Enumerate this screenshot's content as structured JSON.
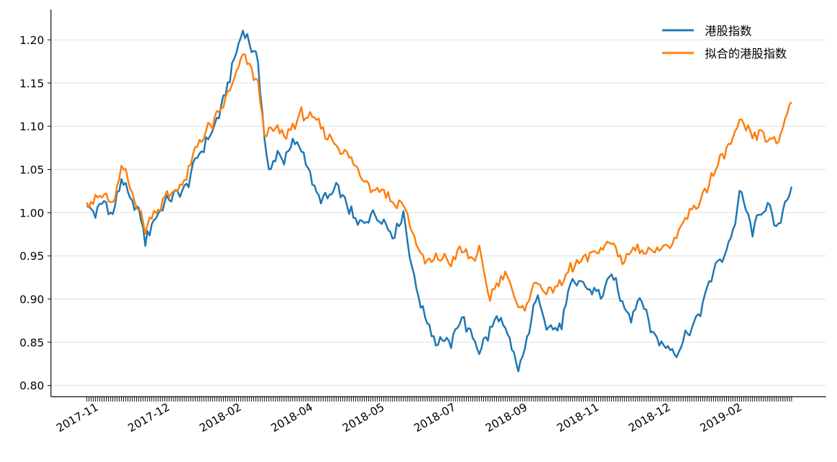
{
  "chart_data": {
    "type": "line",
    "ylim": [
      0.787,
      1.235
    ],
    "yticks": [
      "0.80",
      "0.85",
      "0.90",
      "0.95",
      "1.00",
      "1.05",
      "1.10",
      "1.15",
      "1.20"
    ],
    "xticks": [
      "2017-11",
      "2017-12",
      "2018-02",
      "2018-04",
      "2018-05",
      "2018-07",
      "2018-09",
      "2018-11",
      "2018-12",
      "2019-02"
    ],
    "n_points": 326,
    "grid": "horizontal",
    "legend_position": "top-right",
    "series": [
      {
        "name": "港股指数",
        "color": "#1f77b4",
        "keypoints": [
          [
            0,
            1.007
          ],
          [
            5,
            0.998
          ],
          [
            12,
            1.015
          ],
          [
            16,
            0.995
          ],
          [
            22,
            1.04
          ],
          [
            25,
            1.025
          ],
          [
            28,
            1.01
          ],
          [
            34,
            0.998
          ],
          [
            37,
            0.968
          ],
          [
            42,
            0.99
          ],
          [
            46,
            1.0
          ],
          [
            50,
            1.012
          ],
          [
            56,
            1.02
          ],
          [
            62,
            1.025
          ],
          [
            70,
            1.065
          ],
          [
            78,
            1.09
          ],
          [
            84,
            1.115
          ],
          [
            92,
            1.17
          ],
          [
            99,
            1.212
          ],
          [
            104,
            1.19
          ],
          [
            108,
            1.18
          ],
          [
            112,
            1.09
          ],
          [
            115,
            1.045
          ],
          [
            120,
            1.07
          ],
          [
            125,
            1.06
          ],
          [
            130,
            1.08
          ],
          [
            136,
            1.075
          ],
          [
            140,
            1.05
          ],
          [
            145,
            1.02
          ],
          [
            152,
            1.015
          ],
          [
            158,
            1.03
          ],
          [
            165,
            1.005
          ],
          [
            172,
            0.985
          ],
          [
            180,
            1.0
          ],
          [
            188,
            0.99
          ],
          [
            194,
            0.975
          ],
          [
            200,
            1.0
          ],
          [
            206,
            0.93
          ],
          [
            210,
            0.9
          ],
          [
            214,
            0.88
          ],
          [
            220,
            0.85
          ],
          [
            225,
            0.855
          ],
          [
            230,
            0.845
          ],
          [
            236,
            0.88
          ],
          [
            242,
            0.86
          ],
          [
            248,
            0.84
          ],
          [
            254,
            0.86
          ],
          [
            260,
            0.88
          ],
          [
            266,
            0.855
          ],
          [
            272,
            0.818
          ],
          [
            276,
            0.835
          ],
          [
            282,
            0.89
          ],
          [
            286,
            0.9
          ],
          [
            290,
            0.87
          ],
          [
            296,
            0.865
          ],
          [
            300,
            0.87
          ],
          [
            305,
            0.915
          ],
          [
            312,
            0.92
          ],
          [
            318,
            0.91
          ],
          [
            325,
            0.905
          ],
          [
            332,
            0.93
          ],
          [
            338,
            0.895
          ],
          [
            344,
            0.88
          ],
          [
            350,
            0.905
          ],
          [
            356,
            0.865
          ],
          [
            362,
            0.85
          ],
          [
            368,
            0.845
          ],
          [
            372,
            0.835
          ],
          [
            378,
            0.86
          ],
          [
            384,
            0.87
          ],
          [
            390,
            0.9
          ],
          [
            396,
            0.935
          ],
          [
            402,
            0.95
          ],
          [
            408,
            0.98
          ],
          [
            413,
            1.025
          ],
          [
            417,
            1.0
          ],
          [
            420,
            0.975
          ],
          [
            425,
            1.0
          ],
          [
            430,
            1.01
          ],
          [
            436,
            0.978
          ],
          [
            441,
            1.015
          ],
          [
            445,
            1.03
          ]
        ]
      },
      {
        "name": "拟合的港股指数",
        "color": "#ff7f0e",
        "keypoints": [
          [
            0,
            1.012
          ],
          [
            5,
            1.015
          ],
          [
            12,
            1.02
          ],
          [
            16,
            1.005
          ],
          [
            22,
            1.05
          ],
          [
            25,
            1.045
          ],
          [
            28,
            1.025
          ],
          [
            34,
            1.0
          ],
          [
            37,
            0.982
          ],
          [
            42,
            1.0
          ],
          [
            46,
            1.005
          ],
          [
            50,
            1.018
          ],
          [
            56,
            1.025
          ],
          [
            62,
            1.035
          ],
          [
            70,
            1.08
          ],
          [
            78,
            1.1
          ],
          [
            84,
            1.115
          ],
          [
            92,
            1.15
          ],
          [
            99,
            1.182
          ],
          [
            104,
            1.165
          ],
          [
            108,
            1.15
          ],
          [
            112,
            1.095
          ],
          [
            115,
            1.09
          ],
          [
            120,
            1.1
          ],
          [
            125,
            1.085
          ],
          [
            130,
            1.1
          ],
          [
            136,
            1.115
          ],
          [
            140,
            1.11
          ],
          [
            145,
            1.105
          ],
          [
            152,
            1.09
          ],
          [
            158,
            1.08
          ],
          [
            165,
            1.065
          ],
          [
            172,
            1.045
          ],
          [
            180,
            1.03
          ],
          [
            188,
            1.025
          ],
          [
            194,
            1.01
          ],
          [
            200,
            1.01
          ],
          [
            206,
            0.975
          ],
          [
            210,
            0.955
          ],
          [
            214,
            0.94
          ],
          [
            220,
            0.945
          ],
          [
            225,
            0.95
          ],
          [
            230,
            0.94
          ],
          [
            236,
            0.96
          ],
          [
            242,
            0.945
          ],
          [
            248,
            0.955
          ],
          [
            254,
            0.9
          ],
          [
            260,
            0.92
          ],
          [
            266,
            0.935
          ],
          [
            272,
            0.885
          ],
          [
            276,
            0.89
          ],
          [
            282,
            0.915
          ],
          [
            286,
            0.92
          ],
          [
            290,
            0.905
          ],
          [
            296,
            0.915
          ],
          [
            300,
            0.915
          ],
          [
            305,
            0.935
          ],
          [
            312,
            0.945
          ],
          [
            318,
            0.95
          ],
          [
            325,
            0.96
          ],
          [
            332,
            0.965
          ],
          [
            338,
            0.945
          ],
          [
            344,
            0.955
          ],
          [
            350,
            0.96
          ],
          [
            356,
            0.955
          ],
          [
            362,
            0.96
          ],
          [
            368,
            0.96
          ],
          [
            372,
            0.965
          ],
          [
            378,
            0.995
          ],
          [
            384,
            1.005
          ],
          [
            390,
            1.025
          ],
          [
            396,
            1.045
          ],
          [
            402,
            1.065
          ],
          [
            408,
            1.085
          ],
          [
            413,
            1.105
          ],
          [
            417,
            1.095
          ],
          [
            420,
            1.085
          ],
          [
            425,
            1.095
          ],
          [
            430,
            1.085
          ],
          [
            436,
            1.08
          ],
          [
            441,
            1.11
          ],
          [
            445,
            1.128
          ]
        ]
      }
    ]
  }
}
